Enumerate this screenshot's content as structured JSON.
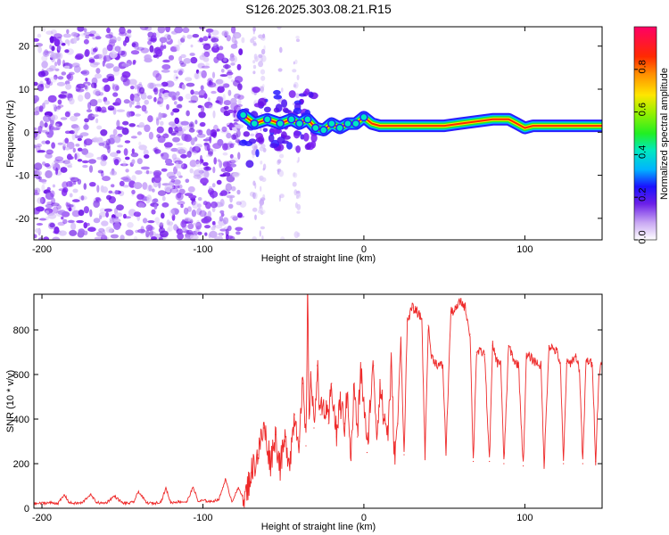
{
  "figure": {
    "title": "S126.2025.303.08.21.R15"
  },
  "colors": {
    "snr_line": "#ee2a2a",
    "axes": "#000000",
    "background": "#ffffff"
  },
  "chart_data": [
    {
      "type": "heatmap",
      "name": "spectrogram",
      "title": "S126.2025.303.08.21.R15",
      "xlabel": "Height of straight line (km)",
      "ylabel": "Frequency (Hz)",
      "xlim": [
        -205,
        148
      ],
      "ylim": [
        -25,
        24.5
      ],
      "xticks": [
        -200,
        -100,
        0,
        100
      ],
      "yticks": [
        -20,
        -10,
        0,
        10,
        20
      ],
      "noise_region_x": [
        -205,
        -75
      ],
      "transition_region_x": [
        -75,
        -25
      ],
      "signal_track": {
        "x": [
          -75,
          -68,
          -60,
          -52,
          -45,
          -40,
          -35,
          -30,
          -25,
          -20,
          -15,
          -10,
          -5,
          0,
          5,
          10,
          15,
          20,
          30,
          40,
          50,
          60,
          70,
          80,
          85,
          90,
          95,
          100,
          105,
          110,
          120,
          130,
          140,
          148
        ],
        "freq": [
          4,
          2,
          3,
          2,
          3,
          2,
          3,
          1,
          0.5,
          2,
          1,
          2,
          2,
          3.5,
          2,
          1.5,
          1.5,
          1.5,
          1.5,
          1.5,
          1.5,
          2,
          2.5,
          3,
          3,
          3,
          2,
          1,
          1.5,
          1.5,
          1.5,
          1.5,
          1.5,
          1.5
        ]
      },
      "colorbar": {
        "label": "Normalized spectral amplitude",
        "range": [
          0,
          1
        ],
        "ticks": [
          "0.0",
          "0.2",
          "0.4",
          "0.6",
          "0.8"
        ]
      },
      "xtick_labels": [
        "-200",
        "-100",
        "0",
        "100"
      ],
      "ytick_labels": [
        "-20",
        "-10",
        "0",
        "10",
        "20"
      ]
    },
    {
      "type": "line",
      "name": "snr",
      "xlabel": "Height of straight line (km)",
      "ylabel": "SNR (10 * v/v)",
      "xlim": [
        -205,
        148
      ],
      "ylim": [
        0,
        960
      ],
      "xticks": [
        -200,
        -100,
        0,
        100
      ],
      "yticks": [
        0,
        200,
        400,
        600,
        800
      ],
      "xtick_labels": [
        "-200",
        "-100",
        "0",
        "100"
      ],
      "ytick_labels": [
        "0",
        "200",
        "400",
        "600",
        "800"
      ],
      "series": [
        {
          "name": "SNR",
          "x": [
            -205,
            -195,
            -190,
            -186,
            -183,
            -180,
            -175,
            -170,
            -166,
            -163,
            -160,
            -155,
            -150,
            -146,
            -143,
            -140,
            -135,
            -130,
            -126,
            -123,
            -120,
            -115,
            -110,
            -106,
            -103,
            -100,
            -95,
            -90,
            -86,
            -82,
            -78,
            -74,
            -70,
            -66,
            -62,
            -58,
            -55,
            -52,
            -49,
            -46,
            -43,
            -40,
            -38,
            -36,
            -35,
            -34,
            -33,
            -31,
            -29,
            -27,
            -25,
            -22,
            -20,
            -17,
            -15,
            -12,
            -10,
            -8,
            -6,
            -4,
            -2,
            0,
            2,
            4,
            6,
            8,
            10,
            12,
            15,
            17,
            19,
            21,
            23,
            25,
            27,
            30,
            33,
            36,
            38,
            40,
            42,
            45,
            47,
            49,
            51,
            54,
            57,
            60,
            63,
            66,
            68,
            70,
            73,
            75,
            78,
            80,
            83,
            85,
            87,
            90,
            92,
            94,
            96,
            99,
            101,
            103,
            106,
            110,
            112,
            115,
            117,
            120,
            122,
            124,
            126,
            128,
            130,
            132,
            134,
            136,
            138,
            140,
            142,
            144,
            146,
            148
          ],
          "y": [
            20,
            25,
            22,
            60,
            25,
            22,
            24,
            62,
            26,
            23,
            25,
            55,
            24,
            22,
            28,
            75,
            24,
            22,
            30,
            90,
            25,
            30,
            28,
            95,
            30,
            35,
            30,
            40,
            130,
            30,
            90,
            40,
            160,
            240,
            360,
            210,
            330,
            190,
            300,
            220,
            420,
            300,
            560,
            280,
            960,
            420,
            600,
            360,
            640,
            420,
            460,
            380,
            560,
            320,
            480,
            380,
            520,
            220,
            560,
            320,
            620,
            480,
            250,
            480,
            640,
            320,
            560,
            420,
            340,
            640,
            240,
            380,
            760,
            240,
            840,
            900,
            880,
            850,
            230,
            820,
            680,
            650,
            640,
            640,
            250,
            880,
            890,
            930,
            900,
            780,
            210,
            700,
            700,
            690,
            210,
            730,
            650,
            660,
            200,
            730,
            690,
            650,
            650,
            190,
            680,
            680,
            660,
            640,
            190,
            730,
            720,
            700,
            650,
            200,
            650,
            650,
            670,
            680,
            620,
            200,
            660,
            660,
            640,
            210,
            600,
            660
          ]
        }
      ]
    }
  ]
}
